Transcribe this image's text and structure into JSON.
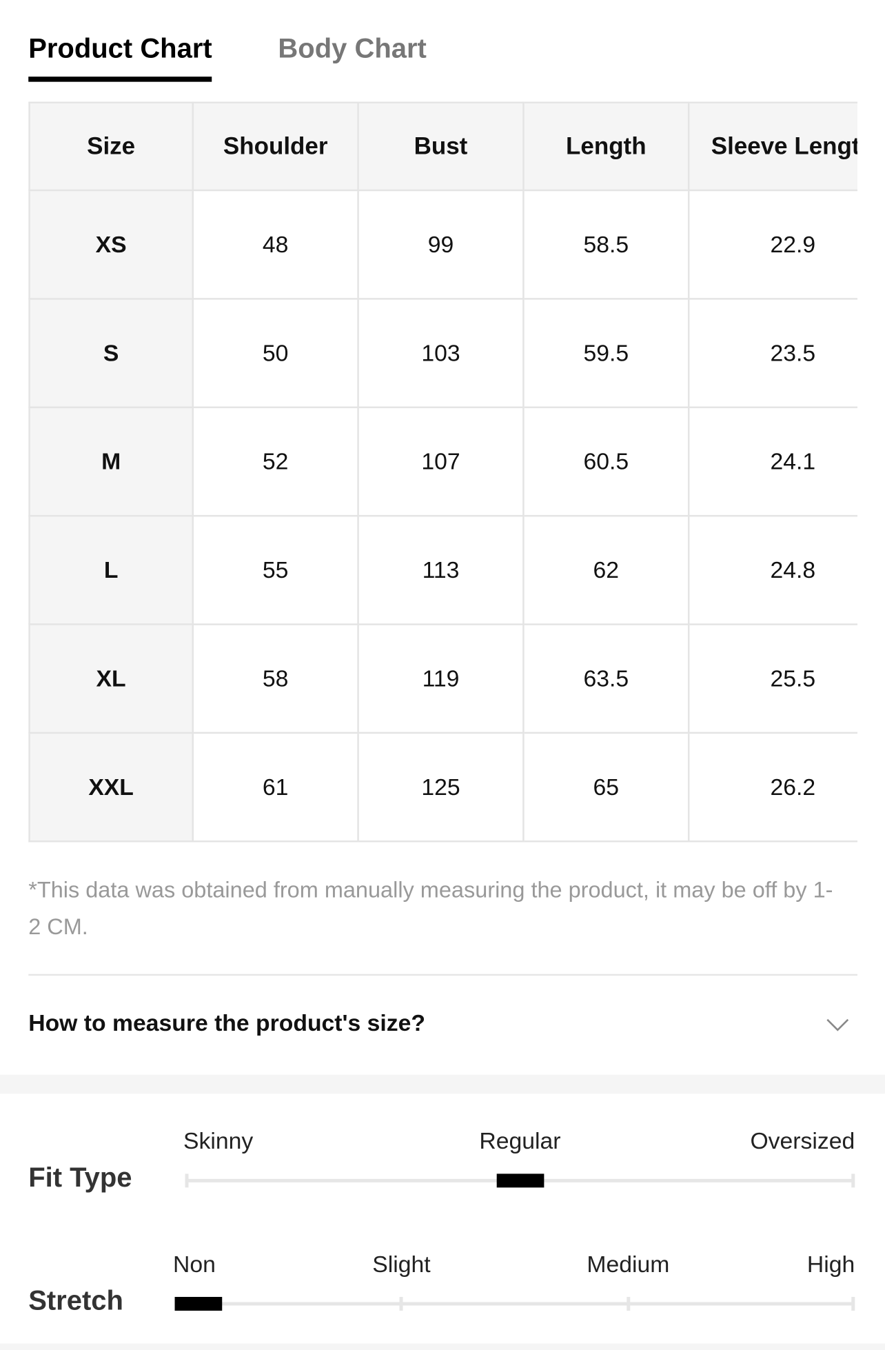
{
  "tabs": {
    "items": [
      "Product Chart",
      "Body Chart"
    ],
    "active": 0
  },
  "table": {
    "headers": [
      "Size",
      "Shoulder",
      "Bust",
      "Length",
      "Sleeve Length"
    ],
    "rows": [
      [
        "XS",
        "48",
        "99",
        "58.5",
        "22.9"
      ],
      [
        "S",
        "50",
        "103",
        "59.5",
        "23.5"
      ],
      [
        "M",
        "52",
        "107",
        "60.5",
        "24.1"
      ],
      [
        "L",
        "55",
        "113",
        "62",
        "24.8"
      ],
      [
        "XL",
        "58",
        "119",
        "63.5",
        "25.5"
      ],
      [
        "XXL",
        "61",
        "125",
        "65",
        "26.2"
      ]
    ]
  },
  "note": "*This data was obtained from manually measuring the product, it may be off by 1-2 CM.",
  "question": "How to measure the product's size?",
  "scales": [
    {
      "label": "Fit Type",
      "options": [
        "Skinny",
        "Regular",
        "Oversized"
      ],
      "selected": 1
    },
    {
      "label": "Stretch",
      "options": [
        "Non",
        "Slight",
        "Medium",
        "High"
      ],
      "selected": 0
    }
  ]
}
